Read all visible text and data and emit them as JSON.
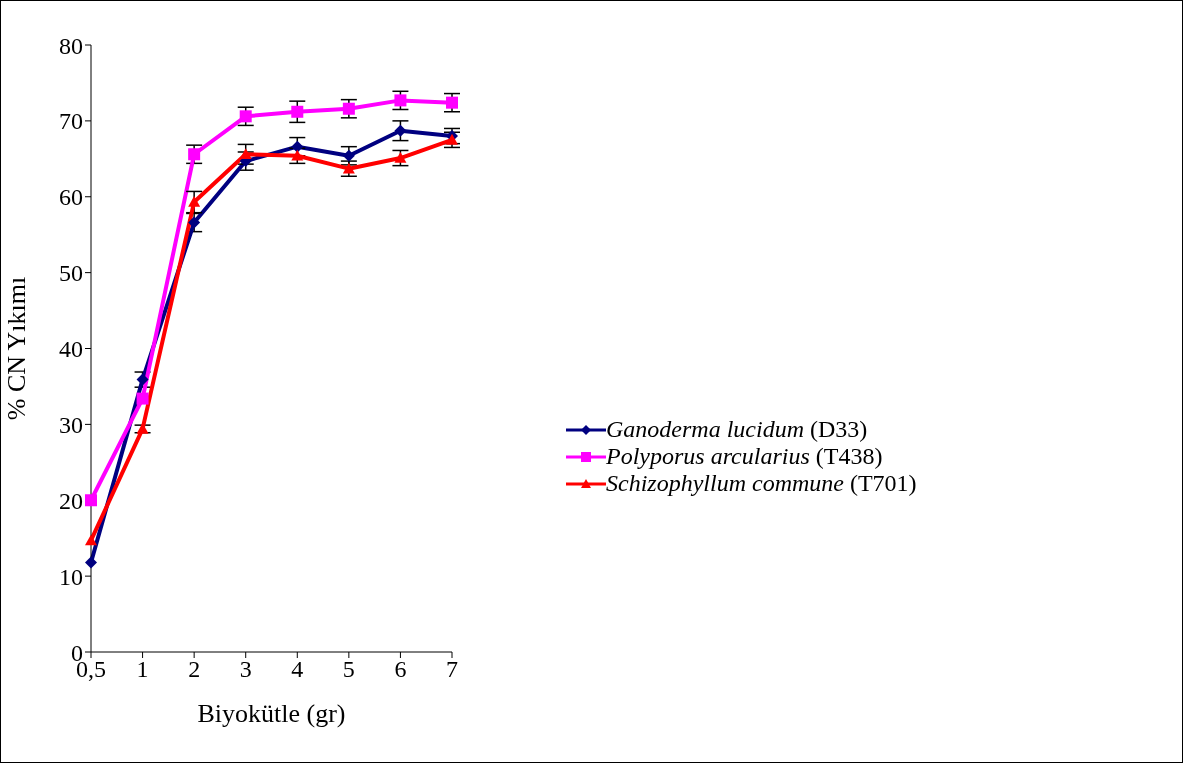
{
  "chart_data": {
    "type": "line",
    "xlabel": "Biyokütle (gr)",
    "ylabel": "% CN Yıkımı",
    "categories": [
      "0,5",
      "1",
      "2",
      "3",
      "4",
      "5",
      "6",
      "7"
    ],
    "ylim": [
      0,
      80
    ],
    "yticks": [
      0,
      10,
      20,
      30,
      40,
      50,
      60,
      70,
      80
    ],
    "grid": false,
    "legend": "right",
    "line_style": "solid",
    "series": [
      {
        "name": "Ganoderma lucidum (D33)",
        "color": "#000080",
        "marker": "diamond",
        "values": [
          11.8,
          35.9,
          56.6,
          64.7,
          66.6,
          65.4,
          68.7,
          68.0
        ],
        "errors": [
          null,
          1,
          1.2,
          1.2,
          1.2,
          1.2,
          1.3,
          1
        ]
      },
      {
        "name": "Polyporus arcularius (T438)",
        "color": "#ff00ff",
        "marker": "square",
        "values": [
          20.0,
          33.4,
          65.6,
          70.6,
          71.2,
          71.6,
          72.7,
          72.4
        ],
        "errors": [
          null,
          null,
          1.2,
          1.2,
          1.4,
          1.2,
          1.2,
          1.2
        ]
      },
      {
        "name": "Schizophyllum commune (T701)",
        "color": "#ff0000",
        "marker": "triangle",
        "values": [
          14.7,
          29.4,
          59.3,
          65.6,
          65.4,
          63.7,
          65.1,
          67.5
        ],
        "errors": [
          null,
          0.5,
          1.4,
          1.3,
          1,
          1,
          1,
          1
        ]
      }
    ]
  }
}
